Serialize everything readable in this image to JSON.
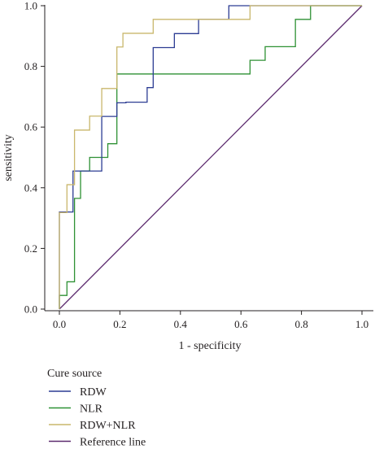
{
  "chart_data": {
    "type": "line",
    "title": "",
    "xlabel": "1 - specificity",
    "ylabel": "sensitivity",
    "xlim": [
      0,
      1
    ],
    "ylim": [
      0,
      1
    ],
    "xticks": [
      "0.0",
      "0.2",
      "0.4",
      "0.6",
      "0.8",
      "1.0"
    ],
    "yticks": [
      "0.0",
      "0.2",
      "0.4",
      "0.6",
      "0.8",
      "1.0"
    ],
    "grid": false,
    "legend_title": "Cure source",
    "legend_position": "bottom-left",
    "series": [
      {
        "name": "RDW",
        "color": "#2c3c93",
        "step": true,
        "x": [
          0,
          0,
          0.045,
          0.045,
          0.14,
          0.14,
          0.19,
          0.19,
          0.22,
          0.22,
          0.29,
          0.29,
          0.31,
          0.31,
          0.38,
          0.38,
          0.46,
          0.46,
          0.56,
          0.56,
          1.0
        ],
        "y": [
          0,
          0.32,
          0.32,
          0.455,
          0.455,
          0.635,
          0.635,
          0.68,
          0.68,
          0.682,
          0.682,
          0.73,
          0.73,
          0.862,
          0.862,
          0.908,
          0.908,
          0.955,
          0.955,
          1.0,
          1.0
        ]
      },
      {
        "name": "NLR",
        "color": "#2e9134",
        "step": true,
        "x": [
          0,
          0,
          0.025,
          0.025,
          0.05,
          0.05,
          0.07,
          0.07,
          0.1,
          0.1,
          0.16,
          0.16,
          0.19,
          0.19,
          0.63,
          0.63,
          0.68,
          0.68,
          0.78,
          0.78,
          0.83,
          0.83,
          1.0
        ],
        "y": [
          0,
          0.045,
          0.045,
          0.09,
          0.09,
          0.365,
          0.365,
          0.455,
          0.455,
          0.5,
          0.5,
          0.545,
          0.545,
          0.775,
          0.775,
          0.82,
          0.82,
          0.865,
          0.865,
          0.955,
          0.955,
          1.0,
          1.0
        ]
      },
      {
        "name": "RDW+NLR",
        "color": "#c9b76c",
        "step": true,
        "x": [
          0,
          0,
          0.025,
          0.025,
          0.05,
          0.05,
          0.1,
          0.1,
          0.14,
          0.14,
          0.19,
          0.19,
          0.21,
          0.21,
          0.31,
          0.31,
          0.63,
          0.63,
          1.0
        ],
        "y": [
          0,
          0.318,
          0.318,
          0.41,
          0.41,
          0.59,
          0.59,
          0.636,
          0.636,
          0.727,
          0.727,
          0.864,
          0.864,
          0.909,
          0.909,
          0.955,
          0.955,
          1.0,
          1.0
        ]
      },
      {
        "name": "Reference line",
        "color": "#5c2a6e",
        "step": false,
        "x": [
          0,
          1
        ],
        "y": [
          0,
          1
        ]
      }
    ]
  }
}
